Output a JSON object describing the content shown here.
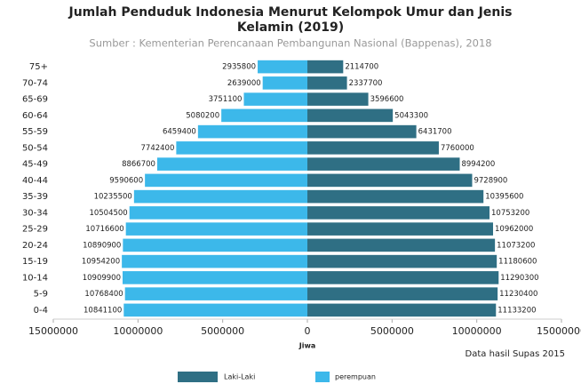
{
  "chart_data": {
    "type": "pyramid",
    "title_lines": [
      "Jumlah Penduduk Indonesia Menurut Kelompok Umur dan Jenis",
      "Kelamin (2019)"
    ],
    "subtitle": "Sumber : Kementerian Perencanaan Pembangunan Nasional (Bappenas), 2018",
    "x_label": "Jiwa",
    "annotation": "Data hasil Supas 2015",
    "categories": [
      "75+",
      "70-74",
      "65-69",
      "60-64",
      "55-59",
      "50-54",
      "45-49",
      "40-44",
      "35-39",
      "30-34",
      "25-29",
      "20-24",
      "15-19",
      "10-14",
      "5-9",
      "0-4"
    ],
    "series": [
      {
        "name": "Laki-Laki",
        "color": "#2f6f84",
        "values": [
          2114700,
          2337700,
          3596600,
          5043300,
          6431700,
          7760000,
          8994200,
          9728900,
          10395600,
          10753200,
          10962000,
          11073200,
          11180600,
          11290300,
          11230400,
          11133200
        ]
      },
      {
        "name": "perempuan",
        "color": "#3cb8ea",
        "values": [
          2935800,
          2639000,
          3751100,
          5080200,
          6459400,
          7742400,
          8866700,
          9590600,
          10235500,
          10504500,
          10716600,
          10890900,
          10954200,
          10909900,
          10768400,
          10841100
        ]
      }
    ],
    "xlim": [
      -15000000,
      15000000
    ],
    "xticks": [
      {
        "value": -15000000,
        "label": "15000000"
      },
      {
        "value": -10000000,
        "label": "10000000"
      },
      {
        "value": -5000000,
        "label": "5000000"
      },
      0,
      5000000,
      10000000,
      15000000
    ]
  }
}
